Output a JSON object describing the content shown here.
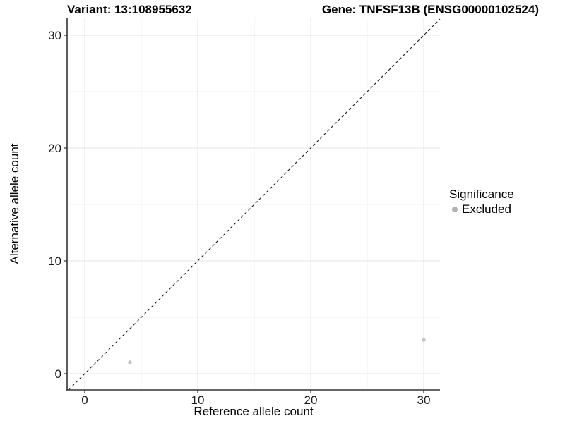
{
  "chart_data": {
    "type": "scatter",
    "title_left": "Variant: 13:108955632",
    "title_right": "Gene: TNFSF13B (ENSG00000102524)",
    "xlabel": "Reference allele count",
    "ylabel": "Alternative allele count",
    "xticks": [
      0,
      10,
      20,
      30
    ],
    "yticks": [
      0,
      10,
      20,
      30
    ],
    "minor_ticks": [
      5,
      15,
      25
    ],
    "xlim": [
      -1.5625,
      31.4375
    ],
    "ylim": [
      -1.4375,
      31.5625
    ],
    "grid": true,
    "legend": {
      "title": "Significance",
      "position": "right"
    },
    "identity_line": {
      "style": "dashed",
      "color": "#1a1a1a"
    },
    "series": [
      {
        "name": "Excluded",
        "color": "#c4c4c4",
        "points": [
          {
            "x": 4,
            "y": 1
          },
          {
            "x": 30,
            "y": 3
          }
        ]
      }
    ],
    "colors": {
      "background": "#ffffff",
      "grid_major": "#e4e4e4",
      "grid_minor": "#f2f2f2",
      "axis": "#333333",
      "tick_label": "#1a1a1a",
      "legend_dot": "#b2b2b2"
    }
  }
}
